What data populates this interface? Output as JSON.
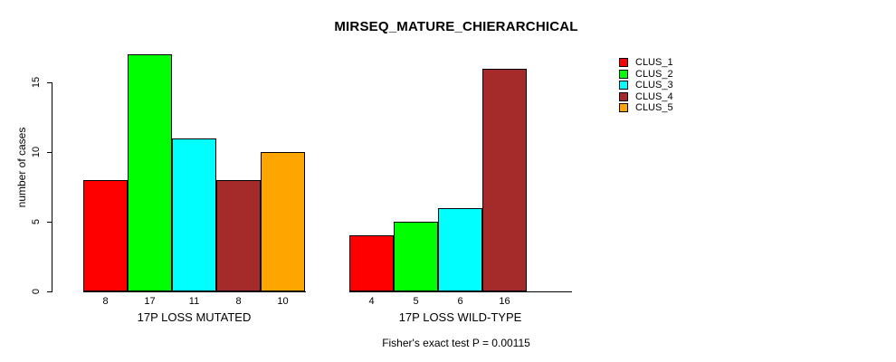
{
  "chart_data": {
    "type": "bar",
    "title": "MIRSEQ_MATURE_CHIERARCHICAL",
    "ylabel": "number of cases",
    "xlabel": "",
    "footnote": "Fisher's exact test P = 0.00115",
    "categories": [
      "17P LOSS MUTATED",
      "17P LOSS WILD-TYPE"
    ],
    "series": [
      {
        "name": "CLUS_1",
        "color": "#ff0000",
        "values": [
          8,
          4
        ]
      },
      {
        "name": "CLUS_2",
        "color": "#00ff00",
        "values": [
          17,
          5
        ]
      },
      {
        "name": "CLUS_3",
        "color": "#00ffff",
        "values": [
          11,
          6
        ]
      },
      {
        "name": "CLUS_4",
        "color": "#a52a2a",
        "values": [
          8,
          16
        ]
      },
      {
        "name": "CLUS_5",
        "color": "#ffa500",
        "values": [
          10,
          0
        ]
      }
    ],
    "bar_value_labels": [
      "8",
      "17",
      "11",
      "8",
      "10",
      "4",
      "5",
      "6",
      "16"
    ],
    "yticks": [
      0,
      5,
      10,
      15
    ],
    "ylim": [
      0,
      17.5
    ],
    "grid": false,
    "legend_position": "right",
    "zero_height_bars_hidden": true,
    "background_color": "#ffffff",
    "axis_color": "#000000"
  }
}
